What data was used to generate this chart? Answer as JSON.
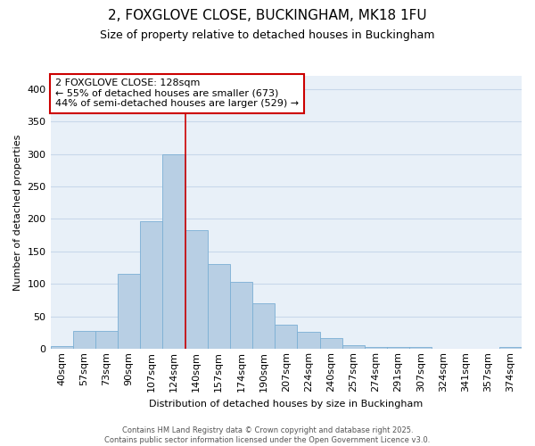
{
  "title1": "2, FOXGLOVE CLOSE, BUCKINGHAM, MK18 1FU",
  "title2": "Size of property relative to detached houses in Buckingham",
  "xlabel": "Distribution of detached houses by size in Buckingham",
  "ylabel": "Number of detached properties",
  "categories": [
    "40sqm",
    "57sqm",
    "73sqm",
    "90sqm",
    "107sqm",
    "124sqm",
    "140sqm",
    "157sqm",
    "174sqm",
    "190sqm",
    "207sqm",
    "224sqm",
    "240sqm",
    "257sqm",
    "274sqm",
    "291sqm",
    "307sqm",
    "324sqm",
    "341sqm",
    "357sqm",
    "374sqm"
  ],
  "values": [
    5,
    28,
    28,
    115,
    197,
    300,
    183,
    130,
    103,
    70,
    38,
    26,
    17,
    6,
    3,
    3,
    3,
    0,
    1,
    0,
    3
  ],
  "bar_color": "#b8cfe4",
  "bar_edge_color": "#7bafd4",
  "grid_color": "#c8d8ea",
  "background_color": "#ffffff",
  "plot_bg_color": "#e8f0f8",
  "marker_label": "2 FOXGLOVE CLOSE: 128sqm",
  "annotation_line1": "← 55% of detached houses are smaller (673)",
  "annotation_line2": "44% of semi-detached houses are larger (529) →",
  "annotation_box_color": "#ffffff",
  "annotation_box_edge": "#cc0000",
  "vline_color": "#cc0000",
  "vline_x": 5.5,
  "ylim": [
    0,
    420
  ],
  "yticks": [
    0,
    50,
    100,
    150,
    200,
    250,
    300,
    350,
    400
  ],
  "footer1": "Contains HM Land Registry data © Crown copyright and database right 2025.",
  "footer2": "Contains public sector information licensed under the Open Government Licence v3.0.",
  "title1_fontsize": 11,
  "title2_fontsize": 9,
  "ylabel_fontsize": 8,
  "xlabel_fontsize": 8,
  "tick_fontsize": 8,
  "annot_fontsize": 8,
  "footer_fontsize": 6
}
